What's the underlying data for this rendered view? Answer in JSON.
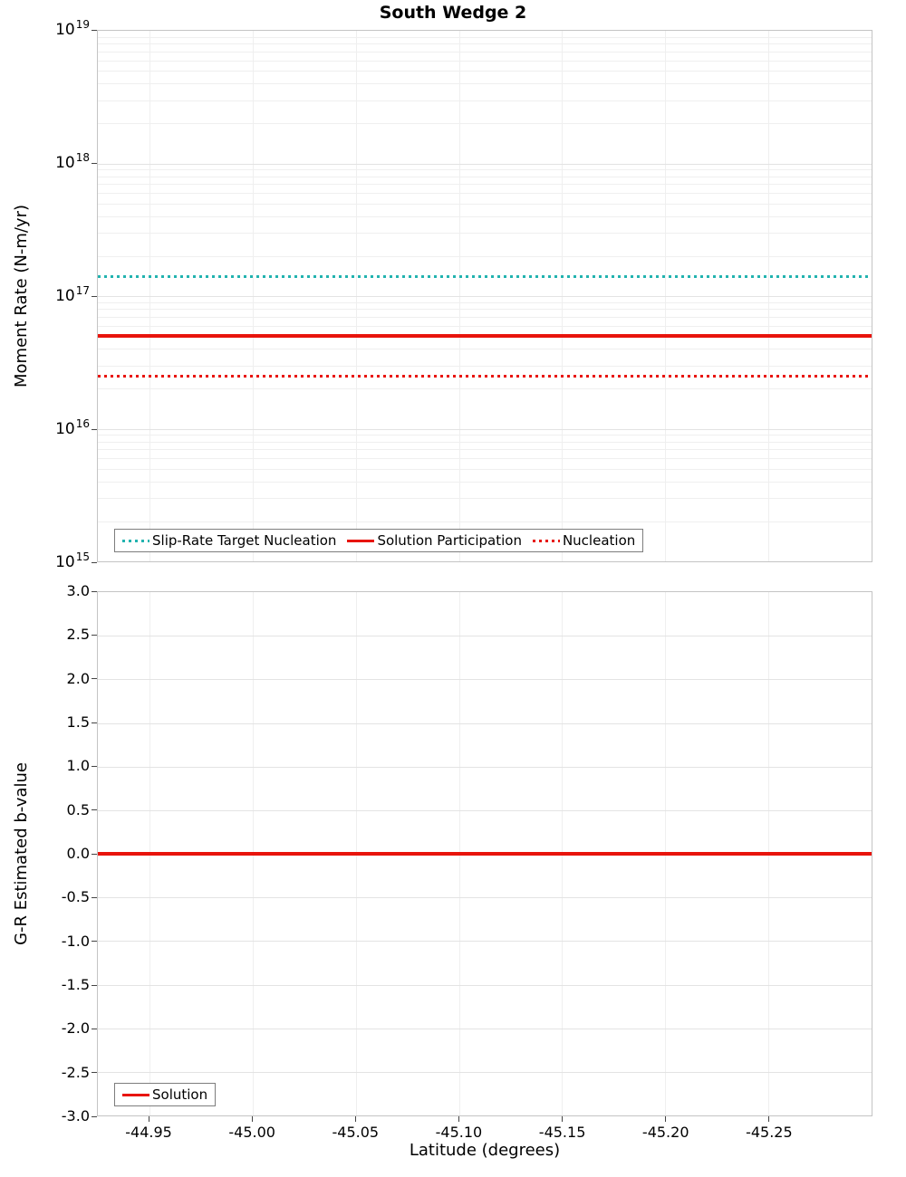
{
  "chart_data": [
    {
      "type": "line",
      "panel": "top",
      "title": "South Wedge 2",
      "ylabel": "Moment Rate (N-m/yr)",
      "xlabel": "",
      "yscale": "log",
      "ylim": [
        1000000000000000.0,
        1e+19
      ],
      "ytick_exponents": [
        15,
        16,
        17,
        18,
        19
      ],
      "xlim": [
        -44.925,
        -45.3
      ],
      "xticks": [
        -44.95,
        -45.0,
        -45.05,
        -45.1,
        -45.15,
        -45.2,
        -45.25
      ],
      "show_xtick_labels": false,
      "grid": true,
      "legend_position": "bottom-left",
      "series": [
        {
          "name": "Slip-Rate Target Nucleation",
          "color": "#22b3af",
          "line_style": "dotted",
          "y": 1.4e+17
        },
        {
          "name": "Solution Participation",
          "color": "#e8140c",
          "line_style": "solid",
          "y": 5e+16
        },
        {
          "name": "Nucleation",
          "color": "#e8140c",
          "line_style": "dotted",
          "y": 2.5e+16
        }
      ]
    },
    {
      "type": "line",
      "panel": "bottom",
      "title": "",
      "ylabel": "G-R Estimated b-value",
      "xlabel": "Latitude (degrees)",
      "yscale": "linear",
      "ylim": [
        -3.0,
        3.0
      ],
      "ytick_step": 0.5,
      "xlim": [
        -44.925,
        -45.3
      ],
      "xticks": [
        -44.95,
        -45.0,
        -45.05,
        -45.1,
        -45.15,
        -45.2,
        -45.25
      ],
      "show_xtick_labels": true,
      "grid": true,
      "legend_position": "bottom-left",
      "series": [
        {
          "name": "Solution",
          "color": "#e8140c",
          "line_style": "solid",
          "y": 0.0
        }
      ]
    }
  ]
}
